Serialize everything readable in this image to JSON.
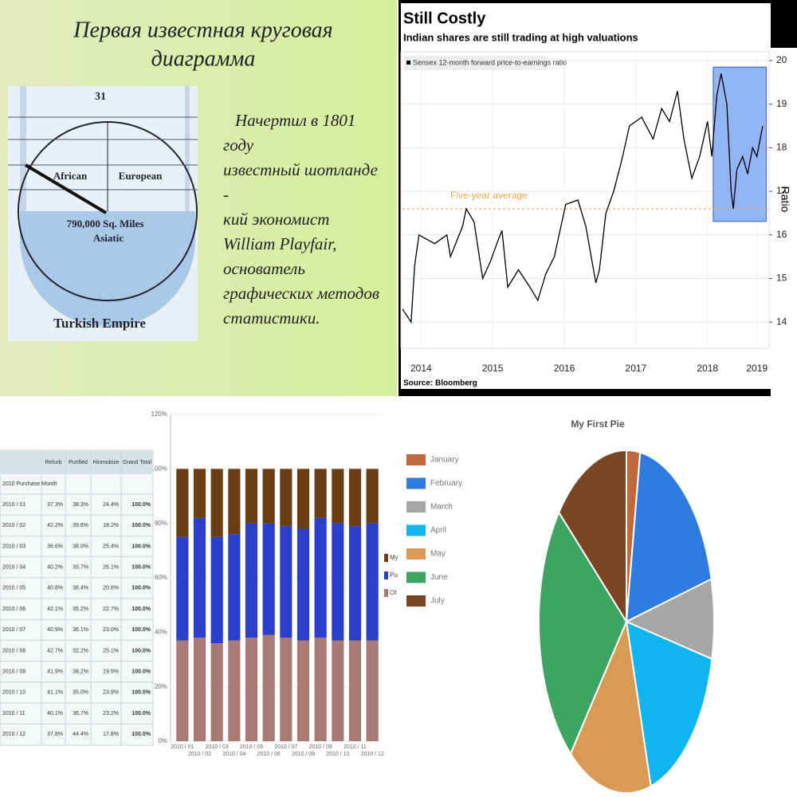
{
  "slide": {
    "title": [
      "Первая известная круговая",
      "диаграмма"
    ],
    "figure_labels": {
      "top": "31",
      "african": "African",
      "european": "European",
      "area": "790,000 Sq. Miles",
      "asiatic": "Asiatic",
      "empire": "Turkish Empire"
    },
    "text": [
      "Начертил в 1801",
      "году",
      "известный шотланде",
      "-",
      "кий экономист",
      "William Playfair,",
      "основатель",
      "графических методов",
      "статистики."
    ]
  },
  "table": {
    "header": [
      "Refurb",
      "Purified",
      "Hinmobize",
      "Grand Total"
    ],
    "group": "2010 Purchase Month",
    "rows": [
      [
        "2010 / 01",
        "37.3%",
        "38.3%",
        "24.4%",
        "100.0%"
      ],
      [
        "2010 / 02",
        "42.2%",
        "39.6%",
        "18.2%",
        "100.0%"
      ],
      [
        "2010 / 03",
        "36.6%",
        "38.0%",
        "25.4%",
        "100.0%"
      ],
      [
        "2010 / 04",
        "40.2%",
        "33.7%",
        "26.1%",
        "100.0%"
      ],
      [
        "2010 / 05",
        "40.8%",
        "38.4%",
        "20.8%",
        "100.0%"
      ],
      [
        "2010 / 06",
        "42.1%",
        "35.2%",
        "22.7%",
        "100.0%"
      ],
      [
        "2010 / 07",
        "40.9%",
        "36.1%",
        "23.0%",
        "100.0%"
      ],
      [
        "2010 / 08",
        "42.7%",
        "32.2%",
        "25.1%",
        "100.0%"
      ],
      [
        "2010 / 09",
        "41.9%",
        "38.2%",
        "19.9%",
        "100.0%"
      ],
      [
        "2010 / 10",
        "41.1%",
        "35.0%",
        "23.9%",
        "100.0%"
      ],
      [
        "2010 / 11",
        "40.1%",
        "36.7%",
        "23.2%",
        "100.0%"
      ],
      [
        "2010 / 12",
        "37.8%",
        "44.4%",
        "17.8%",
        "100.0%"
      ]
    ]
  },
  "chart_data": [
    {
      "type": "line",
      "title": "Still Costly",
      "subtitle": "Indian shares are still trading at high valuations",
      "y_label": "Ratio",
      "source": "Source: Bloomberg",
      "x": [
        2014.24,
        2014.36,
        2014.41,
        2014.47,
        2014.69,
        2014.86,
        2014.91,
        2015.08,
        2015.13,
        2015.24,
        2015.36,
        2015.47,
        2015.58,
        2015.63,
        2015.71,
        2015.86,
        2016.02,
        2016.13,
        2016.24,
        2016.36,
        2016.52,
        2016.69,
        2016.8,
        2016.94,
        2016.99,
        2017.08,
        2017.19,
        2017.3,
        2017.41,
        2017.58,
        2017.74,
        2017.86,
        2017.97,
        2018.08,
        2018.17,
        2018.28,
        2018.39,
        2018.5,
        2018.56,
        2018.63,
        2018.69,
        2018.77,
        2018.83,
        2018.86,
        2018.91,
        2018.99,
        2019.06,
        2019.13,
        2019.19,
        2019.27
      ],
      "series": [
        {
          "name": "Sensex 12-month forward price-to-earnings ratio",
          "color": "#000000",
          "values": [
            14.3,
            14.0,
            15.3,
            16.0,
            15.8,
            16.0,
            15.5,
            16.2,
            16.6,
            16.3,
            15.0,
            15.4,
            15.9,
            16.1,
            14.8,
            15.2,
            14.8,
            14.5,
            15.1,
            15.5,
            16.7,
            16.8,
            16.2,
            14.9,
            15.2,
            16.5,
            17.0,
            17.7,
            18.5,
            18.7,
            18.2,
            18.9,
            18.6,
            19.3,
            18.2,
            17.3,
            17.8,
            18.6,
            17.8,
            19.2,
            19.7,
            19.0,
            17.0,
            16.6,
            17.5,
            17.8,
            17.4,
            18.0,
            17.8,
            18.5
          ]
        }
      ],
      "reference_line": {
        "label": "Five-year average",
        "value": 16.6,
        "color": "#e8a94c"
      },
      "highlight": {
        "x": [
          2018.58,
          2019.32
        ],
        "y": [
          16.31,
          19.85
        ],
        "color": "#7fa8f5"
      },
      "xlim": [
        2014.24,
        2019.36
      ],
      "ylim": [
        13.4,
        20.2
      ],
      "xticks": [
        {
          "value": 2014.5,
          "label": "2014"
        },
        {
          "value": 2015.5,
          "label": "2015"
        },
        {
          "value": 2016.5,
          "label": "2016"
        },
        {
          "value": 2017.5,
          "label": "2017"
        },
        {
          "value": 2018.5,
          "label": "2018"
        },
        {
          "value": 2019.19,
          "label": "2019"
        }
      ],
      "yticks": [
        14,
        15,
        16,
        17,
        18,
        19,
        20
      ],
      "grid": true
    },
    {
      "type": "bar",
      "stacked": true,
      "categories": [
        "2010 / 01",
        "2010 / 02",
        "2010 / 03",
        "2010 / 04",
        "2010 / 05",
        "2010 / 06",
        "2010 / 07",
        "2010 / 08",
        "2010 / 09",
        "2010 / 10",
        "2010 / 11",
        "2010 / 12"
      ],
      "series": [
        {
          "name": "Ot",
          "color": "#a97a73",
          "values": [
            37,
            38,
            36,
            37,
            38,
            39,
            38,
            37,
            38,
            37,
            37,
            37
          ]
        },
        {
          "name": "Pu",
          "color": "#2a3fc9",
          "values": [
            38,
            44,
            39,
            39,
            42,
            41,
            41,
            41,
            44,
            43,
            42,
            43
          ]
        },
        {
          "name": "My",
          "color": "#6b3d12",
          "values": [
            25,
            18,
            25,
            24,
            20,
            20,
            21,
            22,
            18,
            20,
            21,
            20
          ]
        }
      ],
      "ylim": [
        0,
        120
      ],
      "yticks": [
        {
          "value": 0,
          "label": "0%"
        },
        {
          "value": 20,
          "label": "20%"
        },
        {
          "value": 40,
          "label": "40%"
        },
        {
          "value": 60,
          "label": "60%"
        },
        {
          "value": 80,
          "label": "80%"
        },
        {
          "value": 100,
          "label": "100%"
        },
        {
          "value": 120,
          "label": "120%"
        }
      ],
      "grid": true
    },
    {
      "type": "pie",
      "title": "My First Pie",
      "categories": [
        "January",
        "February",
        "March",
        "April",
        "May",
        "June",
        "July"
      ],
      "values": [
        2.5,
        18.5,
        7.5,
        17,
        15.5,
        25,
        14
      ],
      "colors": [
        "#c0683a",
        "#2f7be0",
        "#a6a6a6",
        "#10b4ef",
        "#d89a55",
        "#3da464",
        "#7b4523"
      ]
    }
  ]
}
